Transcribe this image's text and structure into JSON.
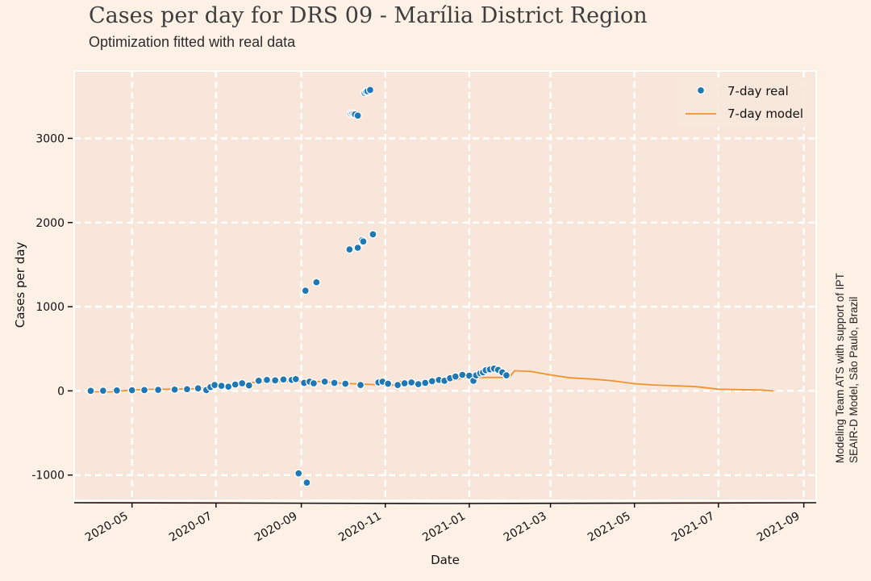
{
  "title": "Cases per day for DRS 09 - Marília District Region",
  "subtitle": "Optimization fitted with real data",
  "side_note": {
    "line1": "Modeling Team ATS with support of IPT",
    "line2": "SEAIR-D Model, São Paulo, Brazil"
  },
  "colors": {
    "background": "#fdf1e6",
    "plot_background": "#f8e6da",
    "grid": "#ffffff",
    "real": "#1f77b4",
    "model": "#f0932b"
  },
  "chart_data": {
    "type": "scatter",
    "xlabel": "Date",
    "ylabel": "Cases per day",
    "xlim": [
      "2020-03-20",
      "2021-09-10"
    ],
    "ylim": [
      -1300,
      3800
    ],
    "grid": true,
    "legend_position": "top-right",
    "x_ticks": [
      "2020-05",
      "2020-07",
      "2020-09",
      "2020-11",
      "2021-01",
      "2021-03",
      "2021-05",
      "2021-07",
      "2021-09"
    ],
    "y_ticks": [
      -1000,
      0,
      1000,
      2000,
      3000
    ],
    "y_tick_labels": [
      "-1000",
      "0",
      "1000",
      "2000",
      "3000"
    ],
    "series": [
      {
        "name": "7-day real",
        "kind": "scatter",
        "points": [
          [
            "2020-04-01",
            0
          ],
          [
            "2020-04-10",
            2
          ],
          [
            "2020-04-20",
            5
          ],
          [
            "2020-05-01",
            8
          ],
          [
            "2020-05-10",
            10
          ],
          [
            "2020-05-20",
            12
          ],
          [
            "2020-06-01",
            15
          ],
          [
            "2020-06-10",
            20
          ],
          [
            "2020-06-18",
            30
          ],
          [
            "2020-06-24",
            10
          ],
          [
            "2020-06-27",
            45
          ],
          [
            "2020-06-30",
            70
          ],
          [
            "2020-07-05",
            60
          ],
          [
            "2020-07-10",
            50
          ],
          [
            "2020-07-15",
            75
          ],
          [
            "2020-07-20",
            90
          ],
          [
            "2020-07-25",
            65
          ],
          [
            "2020-08-01",
            120
          ],
          [
            "2020-08-07",
            130
          ],
          [
            "2020-08-13",
            125
          ],
          [
            "2020-08-19",
            135
          ],
          [
            "2020-08-25",
            130
          ],
          [
            "2020-08-28",
            140
          ],
          [
            "2020-08-30",
            -980
          ],
          [
            "2020-09-03",
            95
          ],
          [
            "2020-09-04",
            1190
          ],
          [
            "2020-09-05",
            -1090
          ],
          [
            "2020-09-07",
            110
          ],
          [
            "2020-09-10",
            90
          ],
          [
            "2020-09-12",
            1290
          ],
          [
            "2020-09-18",
            110
          ],
          [
            "2020-09-25",
            95
          ],
          [
            "2020-10-03",
            85
          ],
          [
            "2020-10-06",
            1680
          ],
          [
            "2020-10-07",
            3290
          ],
          [
            "2020-10-08",
            3295
          ],
          [
            "2020-10-09",
            3290
          ],
          [
            "2020-10-10",
            3285
          ],
          [
            "2020-10-12",
            1700
          ],
          [
            "2020-10-12",
            3270
          ],
          [
            "2020-10-14",
            70
          ],
          [
            "2020-10-15",
            1790
          ],
          [
            "2020-10-16",
            1775
          ],
          [
            "2020-10-17",
            3540
          ],
          [
            "2020-10-18",
            3555
          ],
          [
            "2020-10-19",
            3560
          ],
          [
            "2020-10-21",
            3575
          ],
          [
            "2020-10-23",
            1860
          ],
          [
            "2020-10-27",
            100
          ],
          [
            "2020-10-30",
            110
          ],
          [
            "2020-11-03",
            85
          ],
          [
            "2020-11-10",
            70
          ],
          [
            "2020-11-15",
            90
          ],
          [
            "2020-11-20",
            100
          ],
          [
            "2020-11-25",
            80
          ],
          [
            "2020-11-30",
            95
          ],
          [
            "2020-12-05",
            115
          ],
          [
            "2020-12-10",
            130
          ],
          [
            "2020-12-14",
            120
          ],
          [
            "2020-12-18",
            150
          ],
          [
            "2020-12-22",
            170
          ],
          [
            "2020-12-27",
            190
          ],
          [
            "2021-01-01",
            180
          ],
          [
            "2021-01-04",
            120
          ],
          [
            "2021-01-06",
            185
          ],
          [
            "2021-01-09",
            210
          ],
          [
            "2021-01-11",
            220
          ],
          [
            "2021-01-13",
            245
          ],
          [
            "2021-01-16",
            255
          ],
          [
            "2021-01-19",
            265
          ],
          [
            "2021-01-22",
            250
          ],
          [
            "2021-01-25",
            220
          ],
          [
            "2021-01-28",
            185
          ]
        ]
      },
      {
        "name": "7-day model",
        "kind": "line",
        "points": [
          [
            "2020-04-01",
            -10
          ],
          [
            "2020-04-15",
            -12
          ],
          [
            "2020-05-01",
            10
          ],
          [
            "2020-05-15",
            18
          ],
          [
            "2020-06-01",
            20
          ],
          [
            "2020-06-15",
            25
          ],
          [
            "2020-07-01",
            50
          ],
          [
            "2020-07-15",
            80
          ],
          [
            "2020-08-01",
            105
          ],
          [
            "2020-08-15",
            110
          ],
          [
            "2020-09-01",
            115
          ],
          [
            "2020-09-15",
            110
          ],
          [
            "2020-10-01",
            90
          ],
          [
            "2020-10-15",
            80
          ],
          [
            "2020-11-01",
            70
          ],
          [
            "2020-11-06",
            65
          ],
          [
            "2020-11-12",
            110
          ],
          [
            "2020-11-20",
            105
          ],
          [
            "2020-12-01",
            100
          ],
          [
            "2020-12-15",
            105
          ],
          [
            "2020-12-28",
            155
          ],
          [
            "2021-01-15",
            160
          ],
          [
            "2021-01-30",
            160
          ],
          [
            "2021-02-03",
            240
          ],
          [
            "2021-02-15",
            230
          ],
          [
            "2021-03-01",
            190
          ],
          [
            "2021-03-15",
            155
          ],
          [
            "2021-04-01",
            140
          ],
          [
            "2021-04-15",
            120
          ],
          [
            "2021-05-01",
            85
          ],
          [
            "2021-05-15",
            70
          ],
          [
            "2021-06-01",
            60
          ],
          [
            "2021-06-15",
            50
          ],
          [
            "2021-07-01",
            20
          ],
          [
            "2021-07-15",
            15
          ],
          [
            "2021-08-01",
            10
          ],
          [
            "2021-08-10",
            0
          ]
        ]
      }
    ]
  }
}
